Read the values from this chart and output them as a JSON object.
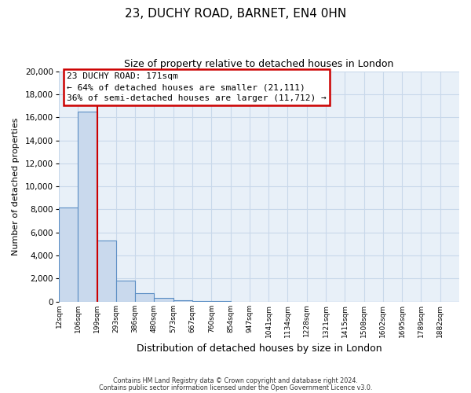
{
  "title": "23, DUCHY ROAD, BARNET, EN4 0HN",
  "subtitle": "Size of property relative to detached houses in London",
  "xlabel": "Distribution of detached houses by size in London",
  "ylabel": "Number of detached properties",
  "bar_color": "#c9d9ed",
  "bar_edge_color": "#5b8ec4",
  "grid_color": "#c8d8ea",
  "background_color": "#e8f0f8",
  "fig_background": "#ffffff",
  "categories": [
    "12sqm",
    "106sqm",
    "199sqm",
    "293sqm",
    "386sqm",
    "480sqm",
    "573sqm",
    "667sqm",
    "760sqm",
    "854sqm",
    "947sqm",
    "1041sqm",
    "1134sqm",
    "1228sqm",
    "1321sqm",
    "1415sqm",
    "1508sqm",
    "1602sqm",
    "1695sqm",
    "1789sqm",
    "1882sqm"
  ],
  "values": [
    8200,
    16500,
    5300,
    1800,
    750,
    300,
    150,
    80,
    60,
    0,
    0,
    0,
    0,
    0,
    0,
    0,
    0,
    0,
    0,
    0,
    0
  ],
  "ylim": [
    0,
    20000
  ],
  "yticks": [
    0,
    2000,
    4000,
    6000,
    8000,
    10000,
    12000,
    14000,
    16000,
    18000,
    20000
  ],
  "red_line_x": 2.0,
  "annotation_title": "23 DUCHY ROAD: 171sqm",
  "annotation_line1": "← 64% of detached houses are smaller (21,111)",
  "annotation_line2": "36% of semi-detached houses are larger (11,712) →",
  "annotation_box_color": "#ffffff",
  "annotation_box_edge": "#cc0000",
  "red_line_color": "#cc0000",
  "footer1": "Contains HM Land Registry data © Crown copyright and database right 2024.",
  "footer2": "Contains public sector information licensed under the Open Government Licence v3.0."
}
